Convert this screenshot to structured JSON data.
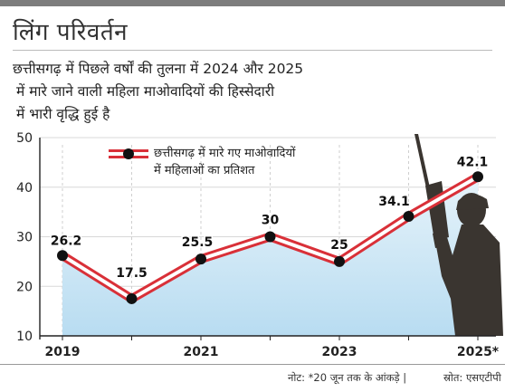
{
  "header": {
    "title": "लिंग परिवर्तन",
    "subtitle_lines": [
      "छत्तीसगढ़ में पिछले वर्षों की तुलना में 2024 और 2025",
      "में मारे जाने वाली महिला माओवादियों की हिस्सेदारी",
      "में भारी वृद्धि हुई है"
    ]
  },
  "footer": {
    "note": "नोट: *20 जून तक के आंकड़े |",
    "source": "स्रोत: एसएटीपी"
  },
  "colors": {
    "line_red": "#d93038",
    "area_blue_top": "#e6f3fa",
    "area_blue_bottom": "#b8dcf1",
    "marker": "#111111",
    "silhouette": "#3a3530"
  },
  "icons": {
    "silhouette": "armed-soldier-silhouette-icon"
  },
  "chart_data": {
    "type": "line",
    "x": [
      2019,
      2020,
      2021,
      2022,
      2023,
      2024,
      2025
    ],
    "x_tick_labels": [
      "2019",
      "2021",
      "2023",
      "2025*"
    ],
    "x_tick_values": [
      2019,
      2021,
      2023,
      2025
    ],
    "series": [
      {
        "name": "छत्तीसगढ़ में मारे गए माओवादियों में महिलाओं का प्रतिशत",
        "values": [
          26.2,
          17.5,
          25.5,
          30,
          25,
          34.1,
          42.1
        ]
      }
    ],
    "data_labels": [
      "26.2",
      "17.5",
      "25.5",
      "30",
      "25",
      "34.1",
      "42.1"
    ],
    "legend_lines": [
      "छत्तीसगढ़ में मारे गए माओवादियों",
      "में महिलाओं का प्रतिशत"
    ],
    "legend_position": "top",
    "ylim": [
      10,
      50
    ],
    "yticks": [
      10,
      20,
      30,
      40,
      50
    ],
    "grid": "horizontal-light-vertical-dashed",
    "area_fill": true
  }
}
